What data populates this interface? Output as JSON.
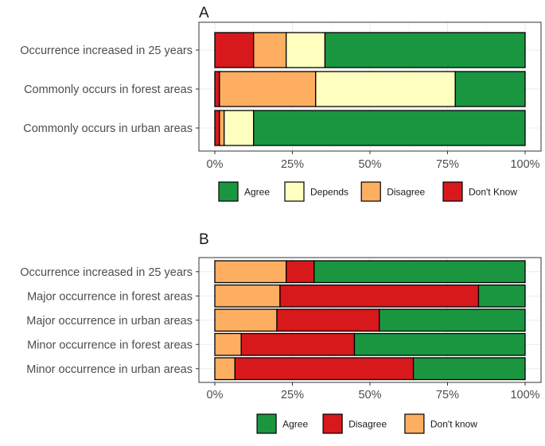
{
  "chart_data": [
    {
      "type": "bar",
      "orientation": "horizontal",
      "stacked": true,
      "panel_label": "A",
      "categories": [
        "Occurrence increased in 25 years",
        "Commonly occurs in forest areas",
        "Commonly occurs in urban areas"
      ],
      "stack_order": [
        "Don't Know",
        "Disagree",
        "Depends",
        "Agree"
      ],
      "series": [
        {
          "name": "Don't Know",
          "color": "#d7191c",
          "values": [
            12.5,
            1.5,
            1.5
          ]
        },
        {
          "name": "Disagree",
          "color": "#fdae61",
          "values": [
            10.5,
            31.0,
            1.5
          ]
        },
        {
          "name": "Depends",
          "color": "#ffffbf",
          "values": [
            12.5,
            45.0,
            9.5
          ]
        },
        {
          "name": "Agree",
          "color": "#1a9641",
          "values": [
            64.5,
            22.5,
            87.5
          ]
        }
      ],
      "xlim": [
        0,
        100
      ],
      "x_ticks": [
        "0%",
        "25%",
        "50%",
        "75%",
        "100%"
      ],
      "grid": true,
      "legend_position": "bottom",
      "legend_order": [
        "Agree",
        "Depends",
        "Disagree",
        "Don't Know"
      ]
    },
    {
      "type": "bar",
      "orientation": "horizontal",
      "stacked": true,
      "panel_label": "B",
      "categories": [
        "Occurrence increased in 25 years",
        "Major occurrence in forest areas",
        "Major occurrence in urban areas",
        "Minor occurrence in forest areas",
        "Minor occurrence in urban areas"
      ],
      "stack_order": [
        "Don't know",
        "Disagree",
        "Agree"
      ],
      "series": [
        {
          "name": "Don't know",
          "color": "#fdae61",
          "values": [
            23.0,
            21.0,
            20.0,
            8.5,
            6.5
          ]
        },
        {
          "name": "Disagree",
          "color": "#d7191c",
          "values": [
            9.0,
            64.0,
            33.0,
            36.5,
            57.5
          ]
        },
        {
          "name": "Agree",
          "color": "#1a9641",
          "values": [
            68.0,
            15.0,
            47.0,
            55.0,
            36.0
          ]
        }
      ],
      "xlim": [
        0,
        100
      ],
      "x_ticks": [
        "0%",
        "25%",
        "50%",
        "75%",
        "100%"
      ],
      "grid": true,
      "legend_position": "bottom",
      "legend_order": [
        "Agree",
        "Disagree",
        "Don't know"
      ]
    }
  ]
}
